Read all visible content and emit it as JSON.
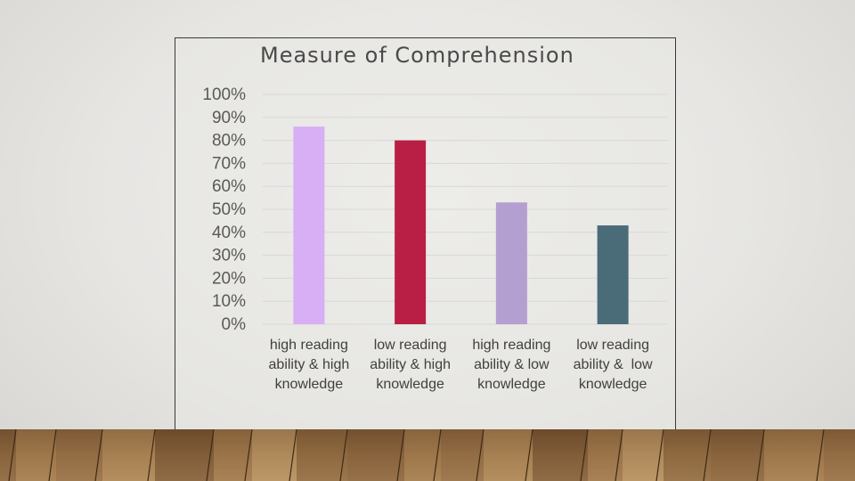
{
  "chart_data": {
    "type": "bar",
    "title": "Measure of Comprehension",
    "categories": [
      [
        "high reading",
        "ability & high",
        "knowledge"
      ],
      [
        "low reading",
        "ability & high",
        "knowledge"
      ],
      [
        "high reading",
        "ability & low",
        "knowledge"
      ],
      [
        "low reading",
        "ability &  low",
        "knowledge"
      ]
    ],
    "values": [
      0.86,
      0.8,
      0.53,
      0.43
    ],
    "colors": [
      "#d8aef5",
      "#b91f44",
      "#b3a0d1",
      "#4a6b78"
    ],
    "ylim": [
      0,
      1
    ],
    "yticks": [
      "0%",
      "10%",
      "20%",
      "30%",
      "40%",
      "50%",
      "60%",
      "70%",
      "80%",
      "90%",
      "100%"
    ],
    "grid": true,
    "xlabel": "",
    "ylabel": ""
  }
}
